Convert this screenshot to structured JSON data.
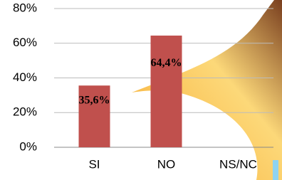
{
  "chart_data": {
    "type": "bar",
    "categories": [
      "SI",
      "NO",
      "NS/NC"
    ],
    "values": [
      35.6,
      64.4,
      0
    ],
    "value_labels": [
      "35,6%",
      "64,4%",
      null
    ],
    "color": "#c0504d",
    "ylim": [
      0,
      80
    ],
    "yticks": [
      {
        "value": 0,
        "label": "0%"
      },
      {
        "value": 20,
        "label": "20%"
      },
      {
        "value": 40,
        "label": "40%"
      },
      {
        "value": 60,
        "label": "60%"
      },
      {
        "value": 80,
        "label": "80%"
      }
    ],
    "grid": true
  }
}
